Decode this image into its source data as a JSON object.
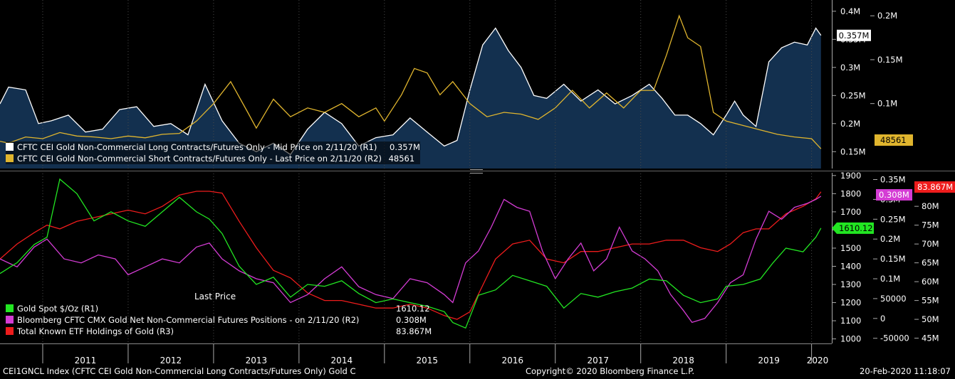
{
  "chart_data": [
    {
      "type": "area",
      "title": "",
      "x_range": [
        2010.5,
        2020.22
      ],
      "axes": {
        "R1": {
          "ticks": [
            "0.15M",
            "0.2M",
            "0.25M",
            "0.3M",
            "0.35M",
            "0.4M"
          ],
          "ylim": [
            120000,
            420000
          ]
        },
        "R2": {
          "ticks": [
            "0.1M",
            "0.15M",
            "0.2M"
          ],
          "ylim": [
            26000,
            218000
          ]
        }
      },
      "series": [
        {
          "name": "CFTC CEI Gold Non-Commercial Long Contracts/Futures Only - Mid Price on 2/11/20",
          "axis": "R1",
          "color": "#ffffff",
          "fill": "#13304f",
          "x": [
            2010.5,
            2010.6,
            2010.8,
            2010.95,
            2011.1,
            2011.3,
            2011.5,
            2011.7,
            2011.9,
            2012.1,
            2012.3,
            2012.5,
            2012.7,
            2012.9,
            2013.1,
            2013.3,
            2013.5,
            2013.7,
            2013.9,
            2014.1,
            2014.3,
            2014.5,
            2014.7,
            2014.9,
            2015.1,
            2015.3,
            2015.5,
            2015.7,
            2015.85,
            2016.0,
            2016.15,
            2016.3,
            2016.45,
            2016.6,
            2016.75,
            2016.9,
            2017.1,
            2017.3,
            2017.5,
            2017.7,
            2017.9,
            2018.1,
            2018.25,
            2018.4,
            2018.55,
            2018.7,
            2018.85,
            2019.0,
            2019.1,
            2019.2,
            2019.35,
            2019.5,
            2019.65,
            2019.8,
            2019.95,
            2020.05,
            2020.11
          ],
          "values": [
            235000,
            265000,
            260000,
            200000,
            205000,
            215000,
            185000,
            190000,
            225000,
            230000,
            195000,
            200000,
            180000,
            270000,
            205000,
            165000,
            150000,
            165000,
            145000,
            190000,
            220000,
            200000,
            160000,
            175000,
            180000,
            210000,
            185000,
            160000,
            170000,
            260000,
            340000,
            370000,
            330000,
            300000,
            250000,
            245000,
            270000,
            240000,
            260000,
            235000,
            250000,
            270000,
            245000,
            215000,
            215000,
            200000,
            180000,
            215000,
            240000,
            215000,
            195000,
            310000,
            335000,
            345000,
            340000,
            370000,
            357000
          ]
        },
        {
          "name": "CFTC CEI Gold Non-Commercial Short Contracts/Futures Only - Last Price on 2/11/20",
          "axis": "R2",
          "color": "#e0b52e",
          "x": [
            2010.5,
            2010.6,
            2010.8,
            2011.0,
            2011.2,
            2011.4,
            2011.6,
            2011.8,
            2012.0,
            2012.2,
            2012.4,
            2012.6,
            2012.8,
            2013.0,
            2013.2,
            2013.4,
            2013.5,
            2013.7,
            2013.9,
            2014.1,
            2014.3,
            2014.5,
            2014.7,
            2014.9,
            2015.0,
            2015.2,
            2015.35,
            2015.5,
            2015.65,
            2015.8,
            2016.0,
            2016.2,
            2016.4,
            2016.6,
            2016.8,
            2017.0,
            2017.2,
            2017.4,
            2017.6,
            2017.8,
            2018.0,
            2018.15,
            2018.3,
            2018.45,
            2018.55,
            2018.7,
            2018.85,
            2019.0,
            2019.2,
            2019.4,
            2019.6,
            2019.8,
            2020.0,
            2020.11
          ],
          "values": [
            57000,
            55000,
            62000,
            60000,
            67000,
            63000,
            62000,
            60000,
            63000,
            61000,
            65000,
            66000,
            80000,
            100000,
            125000,
            90000,
            72000,
            105000,
            85000,
            95000,
            90000,
            100000,
            85000,
            95000,
            80000,
            110000,
            140000,
            135000,
            110000,
            125000,
            100000,
            85000,
            90000,
            88000,
            82000,
            95000,
            115000,
            95000,
            112000,
            95000,
            115000,
            115000,
            155000,
            200000,
            175000,
            165000,
            90000,
            80000,
            75000,
            70000,
            65000,
            62000,
            60000,
            48561
          ]
        }
      ]
    },
    {
      "type": "line",
      "title": "",
      "x_range": [
        2010.5,
        2020.22
      ],
      "axes": {
        "R1": {
          "ticks": [
            "1000",
            "1100",
            "1200",
            "1300",
            "1400",
            "1500",
            "1600",
            "1700",
            "1800",
            "1900"
          ],
          "ylim": [
            975,
            1915
          ]
        },
        "R2": {
          "ticks": [
            "-50000",
            "0",
            "50000",
            "0.1M",
            "0.15M",
            "0.2M",
            "0.25M",
            "0.3M",
            "0.35M"
          ],
          "ylim": [
            -63000,
            367000
          ]
        },
        "R3": {
          "ticks": [
            "45M",
            "50M",
            "55M",
            "60M",
            "65M",
            "70M",
            "75M",
            "80M",
            "85M"
          ],
          "ylim": [
            43600,
            88900
          ]
        }
      },
      "series": [
        {
          "name": "Gold Spot $/Oz",
          "axis": "R1",
          "color": "#22e622",
          "x": [
            2010.5,
            2010.7,
            2010.9,
            2011.05,
            2011.2,
            2011.4,
            2011.6,
            2011.8,
            2012.0,
            2012.2,
            2012.4,
            2012.6,
            2012.8,
            2012.95,
            2013.1,
            2013.3,
            2013.5,
            2013.7,
            2013.9,
            2014.1,
            2014.3,
            2014.5,
            2014.7,
            2014.9,
            2015.1,
            2015.3,
            2015.5,
            2015.7,
            2015.8,
            2015.95,
            2016.1,
            2016.3,
            2016.5,
            2016.7,
            2016.9,
            2017.1,
            2017.3,
            2017.5,
            2017.7,
            2017.9,
            2018.1,
            2018.3,
            2018.5,
            2018.7,
            2018.9,
            2019.0,
            2019.2,
            2019.4,
            2019.55,
            2019.7,
            2019.9,
            2020.05,
            2020.11
          ],
          "values": [
            1360,
            1420,
            1520,
            1560,
            1880,
            1800,
            1650,
            1700,
            1650,
            1620,
            1700,
            1780,
            1700,
            1660,
            1580,
            1400,
            1300,
            1340,
            1230,
            1300,
            1290,
            1320,
            1250,
            1200,
            1220,
            1200,
            1180,
            1150,
            1090,
            1060,
            1240,
            1270,
            1350,
            1320,
            1290,
            1170,
            1250,
            1230,
            1260,
            1280,
            1330,
            1320,
            1240,
            1200,
            1220,
            1290,
            1300,
            1330,
            1420,
            1500,
            1480,
            1560,
            1610.12
          ]
        },
        {
          "name": "Bloomberg CFTC CMX Gold Net Non-Commercial Futures Positions - on 2/11/20",
          "axis": "R2",
          "color": "#d43cd4",
          "x": [
            2010.5,
            2010.7,
            2010.9,
            2011.05,
            2011.25,
            2011.45,
            2011.65,
            2011.85,
            2012.0,
            2012.2,
            2012.4,
            2012.6,
            2012.8,
            2012.95,
            2013.1,
            2013.3,
            2013.5,
            2013.7,
            2013.9,
            2014.1,
            2014.3,
            2014.5,
            2014.7,
            2014.9,
            2015.1,
            2015.3,
            2015.5,
            2015.7,
            2015.8,
            2015.95,
            2016.1,
            2016.25,
            2016.4,
            2016.55,
            2016.7,
            2016.85,
            2017.0,
            2017.15,
            2017.3,
            2017.45,
            2017.6,
            2017.75,
            2017.9,
            2018.05,
            2018.2,
            2018.35,
            2018.5,
            2018.6,
            2018.75,
            2018.9,
            2019.05,
            2019.2,
            2019.35,
            2019.5,
            2019.65,
            2019.8,
            2019.95,
            2020.05,
            2020.11
          ],
          "values": [
            150000,
            130000,
            180000,
            200000,
            150000,
            140000,
            160000,
            150000,
            110000,
            130000,
            150000,
            140000,
            180000,
            190000,
            150000,
            120000,
            100000,
            90000,
            40000,
            60000,
            100000,
            130000,
            80000,
            60000,
            50000,
            100000,
            90000,
            60000,
            40000,
            140000,
            170000,
            230000,
            300000,
            280000,
            270000,
            170000,
            100000,
            150000,
            190000,
            120000,
            150000,
            230000,
            170000,
            150000,
            120000,
            60000,
            20000,
            -10000,
            0,
            40000,
            90000,
            110000,
            200000,
            270000,
            250000,
            280000,
            290000,
            300000,
            308000
          ]
        },
        {
          "name": "Total Known ETF Holdings of Gold",
          "axis": "R3",
          "color": "#ee1c1c",
          "x": [
            2010.5,
            2010.7,
            2010.9,
            2011.05,
            2011.2,
            2011.4,
            2011.6,
            2011.8,
            2012.0,
            2012.2,
            2012.4,
            2012.6,
            2012.8,
            2012.95,
            2013.1,
            2013.3,
            2013.5,
            2013.7,
            2013.9,
            2014.1,
            2014.3,
            2014.5,
            2014.7,
            2014.9,
            2015.1,
            2015.3,
            2015.5,
            2015.7,
            2015.85,
            2016.0,
            2016.15,
            2016.3,
            2016.5,
            2016.7,
            2016.9,
            2017.1,
            2017.3,
            2017.5,
            2017.7,
            2017.9,
            2018.1,
            2018.3,
            2018.5,
            2018.7,
            2018.9,
            2019.05,
            2019.2,
            2019.35,
            2019.5,
            2019.7,
            2019.9,
            2020.05,
            2020.11
          ],
          "values": [
            66000,
            70000,
            73000,
            75000,
            74000,
            76000,
            77000,
            78000,
            79000,
            78000,
            80000,
            83000,
            84000,
            84000,
            83500,
            76000,
            69000,
            63000,
            61000,
            57000,
            55000,
            55000,
            54000,
            53000,
            53000,
            54000,
            53000,
            51000,
            50000,
            52000,
            59000,
            66000,
            70000,
            71000,
            66000,
            65000,
            68000,
            68000,
            69000,
            70000,
            70000,
            71000,
            71000,
            69000,
            68000,
            70000,
            73000,
            74000,
            74000,
            78000,
            80000,
            82000,
            83867
          ]
        }
      ]
    }
  ],
  "top_panel": {
    "legend": [
      {
        "swatch": "#ffffff",
        "label": "CFTC CEI Gold Non-Commercial Long Contracts/Futures Only - Mid Price on 2/11/20 (R1)",
        "value": "0.357M"
      },
      {
        "swatch": "#e0b52e",
        "label": "CFTC CEI Gold Non-Commercial Short Contracts/Futures Only - Last Price on 2/11/20 (R2)",
        "value": "48561"
      }
    ],
    "r1_ticks": [
      "0.4M",
      "0.35M",
      "0.3M",
      "0.25M",
      "0.2M",
      "0.15M"
    ],
    "r2_ticks": [
      "0.2M",
      "0.15M",
      "0.1M"
    ],
    "last_r1": "0.357M",
    "last_r2": "48561"
  },
  "bottom_panel": {
    "annotation": "Last Price",
    "legend": [
      {
        "swatch": "#22e622",
        "label": "Gold Spot $/Oz (R1)",
        "value": "1610.12"
      },
      {
        "swatch": "#d43cd4",
        "label": "Bloomberg CFTC CMX Gold Net Non-Commercial Futures Positions - on 2/11/20 (R2)",
        "value": "0.308M"
      },
      {
        "swatch": "#ee1c1c",
        "label": "Total Known ETF Holdings of Gold (R3)",
        "value": "83.867M"
      }
    ],
    "r1_ticks": [
      "1900",
      "1800",
      "1700",
      "1600",
      "1500",
      "1400",
      "1300",
      "1200",
      "1100",
      "1000"
    ],
    "r2_ticks": [
      "0.35M",
      "0.3M",
      "0.25M",
      "0.2M",
      "0.15M",
      "0.1M",
      "50000",
      "0",
      "-50000"
    ],
    "r3_ticks": [
      "85M",
      "80M",
      "75M",
      "70M",
      "65M",
      "60M",
      "55M",
      "50M",
      "45M"
    ],
    "last_r1": "1610.12",
    "last_r2": "0.308M",
    "last_r3": "83.867M"
  },
  "x_axis": {
    "years": [
      "2011",
      "2012",
      "2013",
      "2014",
      "2015",
      "2016",
      "2017",
      "2018",
      "2019",
      "2020"
    ]
  },
  "footer": {
    "left": "CEI1GNCL Index (CFTC CEI Gold Non-Commercial Long Contracts/Futures Only) Gold C",
    "center": "Copyright© 2020 Bloomberg Finance L.P.",
    "right": "20-Feb-2020 11:18:07"
  }
}
